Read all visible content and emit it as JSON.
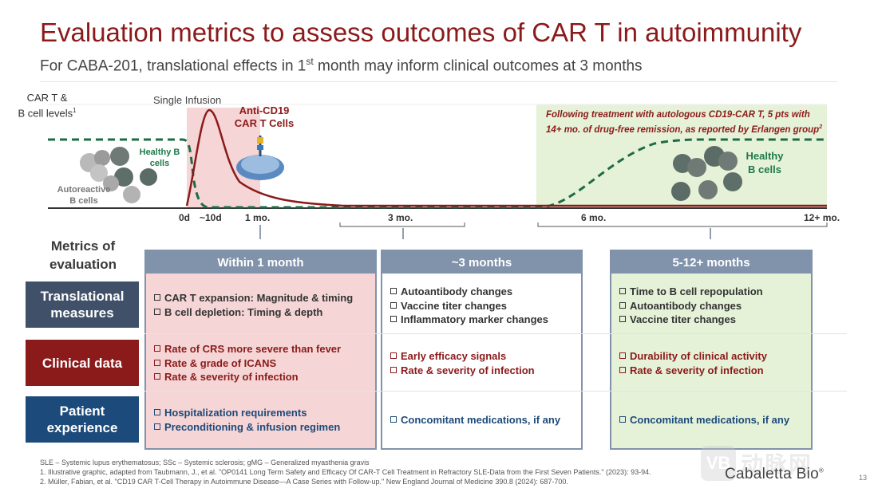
{
  "title": "Evaluation metrics to assess outcomes of CAR T in autoimmunity",
  "subtitle": {
    "before": "For CABA-201, translational effects in 1",
    "sup": "st",
    "after": " month may inform clinical outcomes at 3 months"
  },
  "diagram": {
    "y_axis_label": "CAR T &",
    "y_axis_label2": "B cell levels",
    "y_axis_sup": "1",
    "single_infusion": "Single Infusion",
    "car_t_label1": "Anti-CD19",
    "car_t_label2": "CAR T Cells",
    "healthy_small_1": "Healthy B",
    "healthy_small_2": "cells",
    "autoreactive_1": "Autoreactive",
    "autoreactive_2": "B cells",
    "green_box_text": "Following treatment with autologous CD19-CAR T, 5 pts with 14+ mo. of drug-free remission, as reported by Erlangen group",
    "green_box_sup": "2",
    "healthy_big_1": "Healthy",
    "healthy_big_2": "B cells",
    "ticks": [
      "0d",
      "~10d",
      "1 mo.",
      "3 mo.",
      "6 mo.",
      "12+ mo."
    ],
    "colors": {
      "car_t_curve": "#8b1a1a",
      "b_cell_curve": "#1f6b45",
      "shade_red": "#f5d5d5",
      "shade_green": "#e5f2d8"
    }
  },
  "metrics_header": "Metrics of evaluation",
  "rows": [
    {
      "label": "Translational measures",
      "color": "#3f5068"
    },
    {
      "label": "Clinical data",
      "color": "#8b1a1a"
    },
    {
      "label": "Patient experience",
      "color": "#1c4a7a"
    }
  ],
  "columns": [
    {
      "header": "Within 1 month",
      "bg": "#f5d5d5",
      "translational": [
        "CAR T expansion: Magnitude & timing",
        "B cell depletion: Timing & depth"
      ],
      "clinical": [
        "Rate of CRS more severe than fever",
        "Rate & grade of ICANS",
        "Rate & severity of infection"
      ],
      "patient": [
        "Hospitalization requirements",
        "Preconditioning & infusion regimen"
      ]
    },
    {
      "header": "~3 months",
      "bg": "#ffffff",
      "translational": [
        "Autoantibody changes",
        "Vaccine titer changes",
        "Inflammatory marker changes"
      ],
      "clinical": [
        "Early efficacy signals",
        "Rate & severity of infection"
      ],
      "patient": [
        "Concomitant medications, if any"
      ]
    },
    {
      "header": "5-12+ months",
      "bg": "#e5f2d8",
      "translational": [
        "Time to B cell repopulation",
        "Autoantibody changes",
        "Vaccine titer changes"
      ],
      "clinical": [
        "Durability of clinical activity",
        "Rate & severity of infection"
      ],
      "patient": [
        "Concomitant medications, if any"
      ]
    }
  ],
  "footnotes": [
    "SLE – Systemic lupus erythematosus; SSc – Systemic sclerosis; gMG – Generalized myasthenia gravis",
    "1. Illustrative graphic, adapted from Taubmann, J., et al. \"OP0141 Long Term Safety and Efficacy Of CAR-T Cell Treatment in Refractory SLE-Data from the First Seven Patients.\" (2023): 93-94.",
    "2. Müller, Fabian, et al. \"CD19 CAR T-Cell Therapy in Autoimmune Disease—A Case Series with Follow-up.\" New England Journal of Medicine 390.8 (2024): 687-700."
  ],
  "logo": "Cabaletta Bio",
  "logo_mark": "®",
  "page_number": "13",
  "watermark": {
    "badge": "VB",
    "text": "动脉网"
  }
}
